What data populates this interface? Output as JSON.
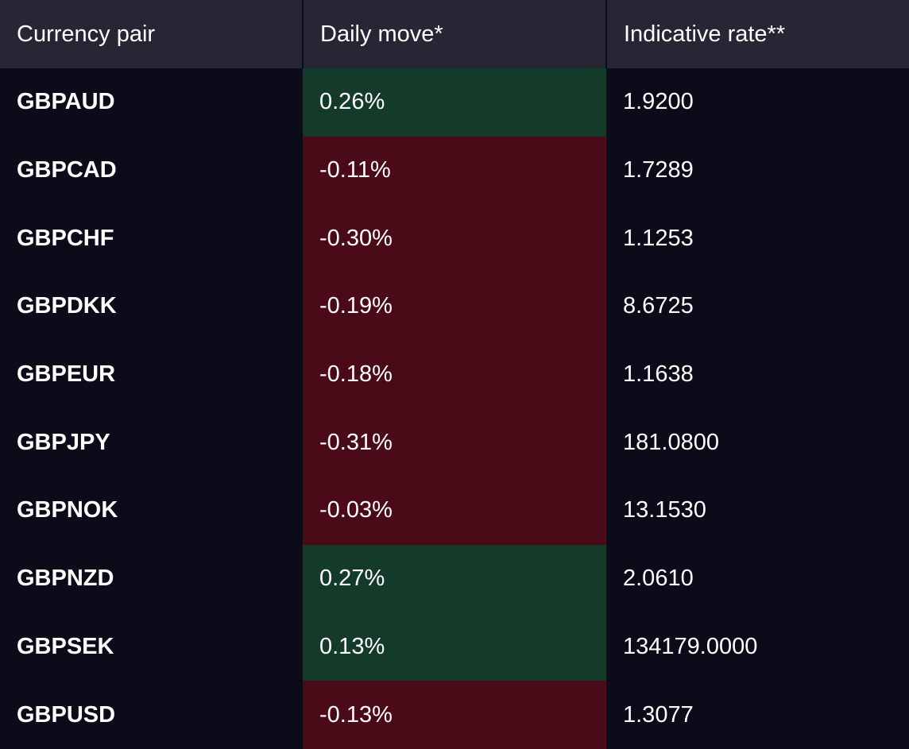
{
  "table": {
    "headers": {
      "pair": "Currency pair",
      "move": "Daily move*",
      "rate": "Indicative rate**"
    },
    "colors": {
      "positive": "#143a2a",
      "negative": "#4b0a18",
      "background": "#0b0b1a",
      "header": "#262635"
    },
    "rows": [
      {
        "pair": "GBPAUD",
        "move": "0.26%",
        "direction": "up",
        "rate": "1.9200"
      },
      {
        "pair": "GBPCAD",
        "move": "-0.11%",
        "direction": "down",
        "rate": "1.7289"
      },
      {
        "pair": "GBPCHF",
        "move": "-0.30%",
        "direction": "down",
        "rate": "1.1253"
      },
      {
        "pair": "GBPDKK",
        "move": "-0.19%",
        "direction": "down",
        "rate": "8.6725"
      },
      {
        "pair": "GBPEUR",
        "move": "-0.18%",
        "direction": "down",
        "rate": "1.1638"
      },
      {
        "pair": "GBPJPY",
        "move": "-0.31%",
        "direction": "down",
        "rate": "181.0800"
      },
      {
        "pair": "GBPNOK",
        "move": "-0.03%",
        "direction": "down",
        "rate": "13.1530"
      },
      {
        "pair": "GBPNZD",
        "move": "0.27%",
        "direction": "up",
        "rate": "2.0610"
      },
      {
        "pair": "GBPSEK",
        "move": "0.13%",
        "direction": "up",
        "rate": "134179.0000"
      },
      {
        "pair": "GBPUSD",
        "move": "-0.13%",
        "direction": "down",
        "rate": "1.3077"
      }
    ]
  }
}
